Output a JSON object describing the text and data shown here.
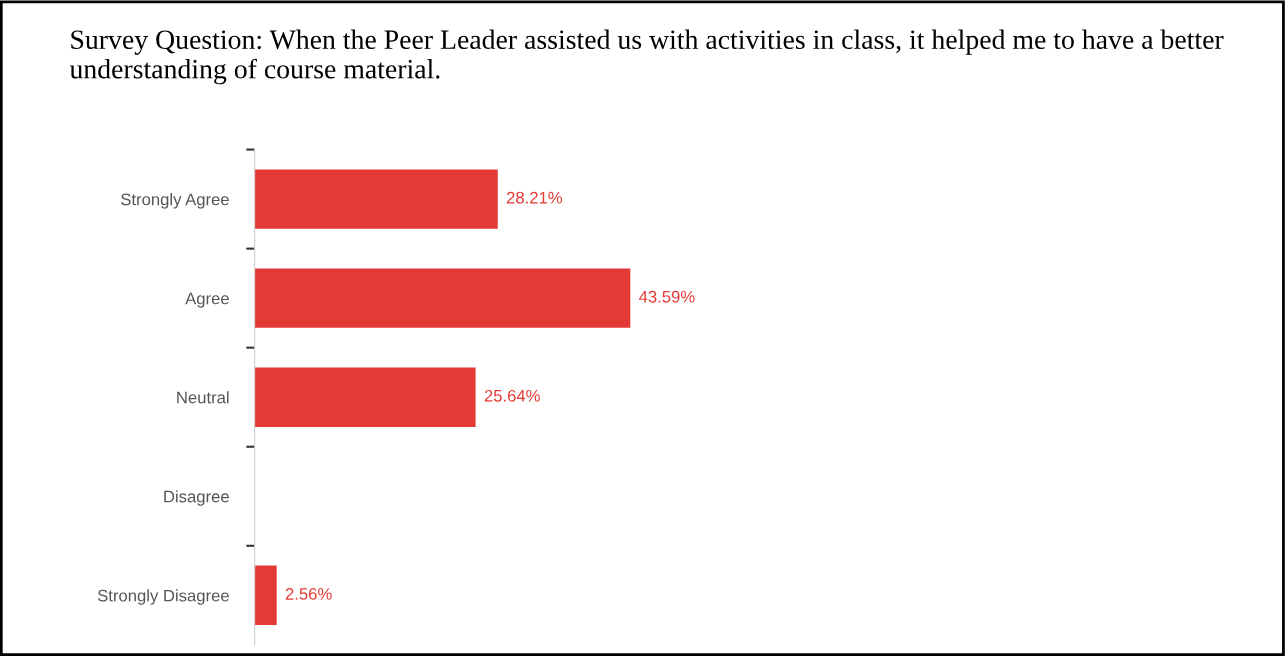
{
  "chart_data": {
    "type": "bar",
    "orientation": "horizontal",
    "title": "Survey Question: When the Peer Leader assisted us with activities in class, it helped me to have a better understanding of course material.",
    "categories": [
      "Strongly Agree",
      "Agree",
      "Neutral",
      "Disagree",
      "Strongly Disagree"
    ],
    "values": [
      28.21,
      43.59,
      25.64,
      null,
      2.56
    ],
    "value_labels": [
      "28.21%",
      "43.59%",
      "25.64%",
      null,
      "2.56%"
    ],
    "color": "#e53935",
    "grid": false,
    "legend": false
  }
}
